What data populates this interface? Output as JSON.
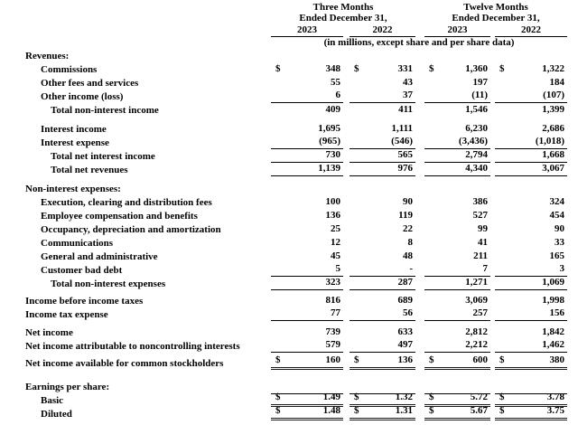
{
  "header": {
    "group1_title": "Three Months",
    "group1_subtitle": "Ended December 31,",
    "group2_title": "Twelve Months",
    "group2_subtitle": "Ended December 31,",
    "years": [
      "2023",
      "2022",
      "2023",
      "2022"
    ],
    "units_note": "(in millions, except share and per share data)"
  },
  "rows": [
    {
      "label": "Revenues:",
      "indent": 0,
      "section": true
    },
    {
      "label": "Commissions",
      "indent": 1,
      "dollar": true,
      "values": [
        "348",
        "331",
        "1,360",
        "1,322"
      ]
    },
    {
      "label": "Other fees and services",
      "indent": 1,
      "values": [
        "55",
        "43",
        "197",
        "184"
      ]
    },
    {
      "label": "Other income (loss)",
      "indent": 1,
      "values": [
        "6",
        "37",
        "(11)",
        "(107)"
      ],
      "underline": "single"
    },
    {
      "label": "Total non-interest income",
      "indent": 2,
      "values": [
        "409",
        "411",
        "1,546",
        "1,399"
      ]
    },
    {
      "label": "Interest income",
      "indent": 1,
      "values": [
        "1,695",
        "1,111",
        "6,230",
        "2,686"
      ],
      "spacing_before": 6
    },
    {
      "label": "Interest expense",
      "indent": 1,
      "values": [
        "(965)",
        "(546)",
        "(3,436)",
        "(1,018)"
      ],
      "underline": "single"
    },
    {
      "label": "Total net interest income",
      "indent": 2,
      "values": [
        "730",
        "565",
        "2,794",
        "1,668"
      ],
      "underline": "single"
    },
    {
      "label": "Total net revenues",
      "indent": 2,
      "values": [
        "1,139",
        "976",
        "4,340",
        "3,067"
      ],
      "underline": "single"
    },
    {
      "label": "Non-interest expenses:",
      "indent": 0,
      "section": true,
      "spacing_before": 6
    },
    {
      "label": "Execution, clearing and distribution fees",
      "indent": 1,
      "values": [
        "100",
        "90",
        "386",
        "324"
      ]
    },
    {
      "label": "Employee compensation and benefits",
      "indent": 1,
      "values": [
        "136",
        "119",
        "527",
        "454"
      ]
    },
    {
      "label": "Occupancy, depreciation and amortization",
      "indent": 1,
      "values": [
        "25",
        "22",
        "99",
        "90"
      ]
    },
    {
      "label": "Communications",
      "indent": 1,
      "values": [
        "12",
        "8",
        "41",
        "33"
      ]
    },
    {
      "label": "General and administrative",
      "indent": 1,
      "values": [
        "45",
        "48",
        "211",
        "165"
      ]
    },
    {
      "label": "Customer bad debt",
      "indent": 1,
      "values": [
        "5",
        "-",
        "7",
        "3"
      ],
      "underline": "single"
    },
    {
      "label": "Total non-interest expenses",
      "indent": 2,
      "values": [
        "323",
        "287",
        "1,271",
        "1,069"
      ],
      "underline": "single"
    },
    {
      "label": "Income before income taxes",
      "indent": 0,
      "values": [
        "816",
        "689",
        "3,069",
        "1,998"
      ],
      "spacing_before": 4
    },
    {
      "label": "Income tax expense",
      "indent": 0,
      "values": [
        "77",
        "56",
        "257",
        "156"
      ],
      "underline": "single"
    },
    {
      "label": "Net income",
      "indent": 0,
      "values": [
        "739",
        "633",
        "2,812",
        "1,842"
      ],
      "spacing_before": 5
    },
    {
      "label": "Net income attributable to noncontrolling interests",
      "indent": 0,
      "values": [
        "579",
        "497",
        "2,212",
        "1,462"
      ],
      "underline": "single"
    },
    {
      "label": "Net income available for common stockholders",
      "indent": 0,
      "dollar": true,
      "values": [
        "160",
        "136",
        "600",
        "380"
      ],
      "underline": "double",
      "spacing_before": 4
    },
    {
      "label": "Earnings per share:",
      "indent": 0,
      "section": true,
      "spacing_before": 11
    },
    {
      "label": "Basic",
      "indent": 1,
      "dollar": true,
      "values": [
        "1.49",
        "1.32",
        "5.72",
        "3.78"
      ],
      "overline": true,
      "underline": "double"
    },
    {
      "label": "Diluted",
      "indent": 1,
      "dollar": true,
      "values": [
        "1.48",
        "1.31",
        "5.67",
        "3.75"
      ],
      "underline": "double"
    }
  ]
}
